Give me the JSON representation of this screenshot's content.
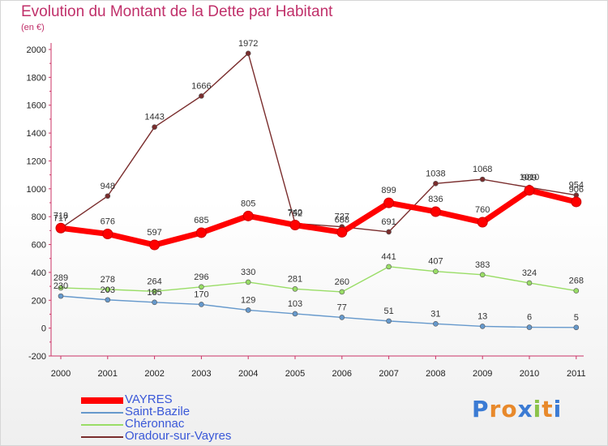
{
  "title": "Evolution du Montant de la Dette par Habitant",
  "subtitle": "(en €)",
  "logo_text": "Proxiti",
  "chart_data": {
    "type": "line",
    "title": "Evolution du Montant de la Dette par Habitant",
    "subtitle": "(en €)",
    "xlabel": "",
    "ylabel": "",
    "categories": [
      "2000",
      "2001",
      "2002",
      "2003",
      "2004",
      "2005",
      "2006",
      "2007",
      "2008",
      "2009",
      "2010",
      "2011"
    ],
    "ylim": [
      -200,
      2000
    ],
    "yticks": [
      -200,
      0,
      200,
      400,
      600,
      800,
      1000,
      1200,
      1400,
      1600,
      1800,
      2000
    ],
    "grid": false,
    "legend_position": "bottom-left",
    "series": [
      {
        "name": "VAYRES",
        "color": "#ff0000",
        "values": [
          718,
          676,
          597,
          685,
          805,
          740,
          688,
          899,
          836,
          760,
          989,
          906
        ]
      },
      {
        "name": "Saint-Bazile",
        "color": "#6699cc",
        "values": [
          230,
          203,
          185,
          170,
          129,
          103,
          77,
          51,
          31,
          13,
          6,
          5
        ]
      },
      {
        "name": "Chéronnac",
        "color": "#99dd66",
        "values": [
          289,
          278,
          264,
          296,
          330,
          281,
          260,
          441,
          407,
          383,
          324,
          268
        ]
      },
      {
        "name": "Oradour-sur-Vayres",
        "color": "#7a2d2d",
        "values": [
          717,
          948,
          1443,
          1666,
          1972,
          752,
          727,
          691,
          1038,
          1068,
          1010,
          954
        ]
      }
    ]
  }
}
